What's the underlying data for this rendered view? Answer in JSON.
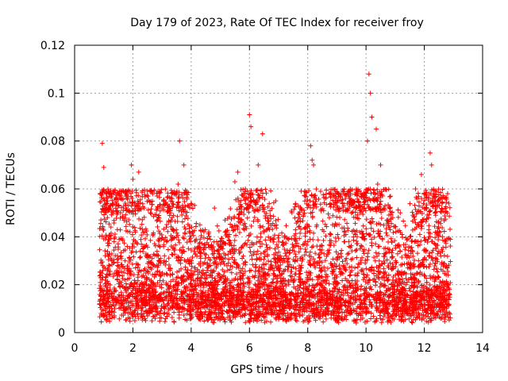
{
  "chart_data": {
    "type": "scatter",
    "title": "Day 179 of 2023, Rate Of TEC Index for receiver froy",
    "xlabel": "GPS time / hours",
    "ylabel": "ROTI / TECUs",
    "xlim": [
      0,
      14
    ],
    "ylim": [
      0,
      0.12
    ],
    "x_ticks": [
      0,
      2,
      4,
      6,
      8,
      10,
      12,
      14
    ],
    "x_tick_labels": [
      "0",
      "2",
      "4",
      "6",
      "8",
      "10",
      "12",
      "14"
    ],
    "y_ticks": [
      0,
      0.02,
      0.04,
      0.06,
      0.08,
      0.1,
      0.12
    ],
    "y_tick_labels": [
      "0",
      "0.02",
      "0.04",
      "0.06",
      "0.08",
      "0.1",
      "0.12"
    ],
    "grid": true,
    "marker": "+",
    "color": "#ff0000",
    "data_span_hours": [
      0.85,
      12.9
    ],
    "series": [
      {
        "name": "ROTI",
        "points_note": "dense cloud of ~0.01-0.03 values; representative peaks listed",
        "x": [
          0.95,
          1.0,
          1.1,
          1.3,
          1.95,
          2.0,
          2.2,
          2.6,
          3.0,
          3.3,
          3.55,
          3.6,
          3.75,
          4.3,
          4.8,
          5.5,
          5.6,
          5.8,
          6.0,
          6.05,
          6.3,
          6.45,
          6.9,
          8.1,
          8.15,
          8.2,
          9.0,
          9.5,
          10.05,
          10.1,
          10.15,
          10.2,
          10.35,
          10.4,
          10.5,
          11.7,
          11.9,
          12.2,
          12.25,
          12.35,
          12.8
        ],
        "y": [
          0.079,
          0.069,
          0.056,
          0.053,
          0.07,
          0.064,
          0.067,
          0.05,
          0.052,
          0.055,
          0.062,
          0.08,
          0.07,
          0.045,
          0.052,
          0.063,
          0.067,
          0.058,
          0.091,
          0.086,
          0.07,
          0.083,
          0.055,
          0.078,
          0.072,
          0.07,
          0.045,
          0.05,
          0.08,
          0.108,
          0.1,
          0.09,
          0.085,
          0.062,
          0.07,
          0.06,
          0.066,
          0.075,
          0.07,
          0.055,
          0.058
        ]
      }
    ]
  }
}
